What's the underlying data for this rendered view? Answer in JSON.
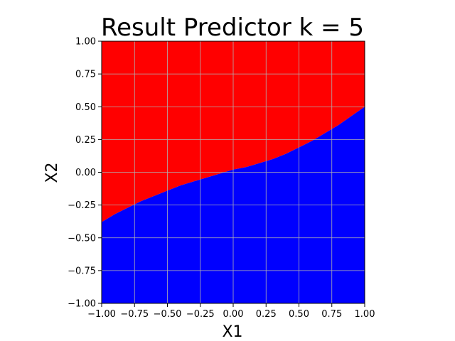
{
  "chart_data": {
    "type": "area",
    "title": "Result Predictor k = 5",
    "xlabel": "X1",
    "ylabel": "X2",
    "xlim": [
      -1.0,
      1.0
    ],
    "ylim": [
      -1.0,
      1.0
    ],
    "xticks": [
      "−1.00",
      "−0.75",
      "−0.50",
      "−0.25",
      "0.00",
      "0.25",
      "0.50",
      "0.75",
      "1.00"
    ],
    "yticks": [
      "−1.00",
      "−0.75",
      "−0.50",
      "−0.25",
      "0.00",
      "0.25",
      "0.50",
      "0.75",
      "1.00"
    ],
    "grid": true,
    "regions": [
      {
        "class": "upper",
        "color": "#ff0000"
      },
      {
        "class": "lower",
        "color": "#0000ff"
      }
    ],
    "boundary": {
      "x": [
        -1.0,
        -0.9,
        -0.8,
        -0.7,
        -0.6,
        -0.5,
        -0.4,
        -0.3,
        -0.2,
        -0.1,
        0.0,
        0.1,
        0.2,
        0.3,
        0.4,
        0.5,
        0.6,
        0.7,
        0.8,
        0.9,
        1.0
      ],
      "y": [
        -0.38,
        -0.32,
        -0.27,
        -0.22,
        -0.18,
        -0.14,
        -0.1,
        -0.07,
        -0.04,
        -0.01,
        0.02,
        0.04,
        0.07,
        0.1,
        0.14,
        0.19,
        0.24,
        0.3,
        0.36,
        0.43,
        0.5
      ]
    }
  }
}
